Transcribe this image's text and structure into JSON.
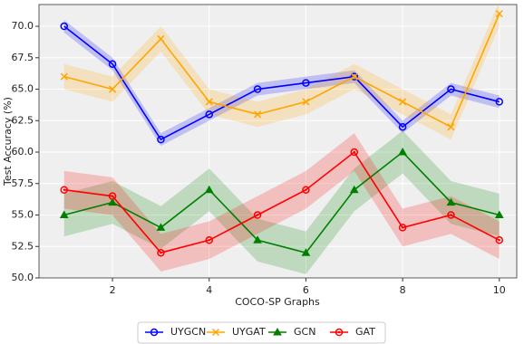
{
  "chart_data": {
    "type": "line",
    "xlabel": "COCO-SP Graphs",
    "ylabel": "Test Accuracy (%)",
    "x": [
      1,
      2,
      3,
      4,
      5,
      6,
      7,
      8,
      9,
      10
    ],
    "xlim": [
      0.48,
      10.36
    ],
    "xticks": [
      2,
      4,
      6,
      8,
      10
    ],
    "ylim": [
      50,
      71.73
    ],
    "yticks": [
      {
        "value": 50,
        "label": "50.0"
      },
      {
        "value": 52.5,
        "label": "52.5"
      },
      {
        "value": 55,
        "label": "55.0"
      },
      {
        "value": 57.5,
        "label": "57.5"
      },
      {
        "value": 60,
        "label": "60.0"
      },
      {
        "value": 62.5,
        "label": "62.5"
      },
      {
        "value": 65,
        "label": "65.0"
      },
      {
        "value": 67.5,
        "label": "67.5"
      },
      {
        "value": 70,
        "label": "70.0"
      }
    ],
    "grid": true,
    "legend": "bottom",
    "series": [
      {
        "name": "UYGCN",
        "color": "#0000ff",
        "marker": "circle",
        "values": [
          70,
          67,
          61,
          63,
          65,
          65.5,
          66,
          62,
          65,
          64
        ],
        "errors": [
          0.5,
          0.5,
          0.5,
          0.5,
          0.5,
          0.5,
          0.5,
          0.5,
          0.5,
          0.5
        ]
      },
      {
        "name": "UYGAT",
        "color": "#ffa500",
        "marker": "x",
        "values": [
          66,
          65,
          69,
          64,
          63,
          64,
          66,
          64,
          62,
          71
        ],
        "errors": [
          1,
          1,
          1,
          1,
          1,
          1,
          1,
          1,
          1,
          1
        ]
      },
      {
        "name": "GCN",
        "color": "#008000",
        "marker": "triangle",
        "values": [
          55,
          56,
          54,
          57,
          53,
          52,
          57,
          60,
          56,
          55
        ],
        "errors": [
          1.7,
          1.7,
          1.7,
          1.7,
          1.7,
          1.7,
          1.7,
          1.7,
          1.7,
          1.7
        ]
      },
      {
        "name": "GAT",
        "color": "#ff0000",
        "marker": "dotcircle",
        "values": [
          57,
          56.5,
          52,
          53,
          55,
          57,
          60,
          54,
          55,
          53
        ],
        "errors": [
          1.5,
          1.5,
          1.5,
          1.5,
          1.5,
          1.5,
          1.5,
          1.5,
          1.5,
          1.5
        ]
      }
    ]
  }
}
